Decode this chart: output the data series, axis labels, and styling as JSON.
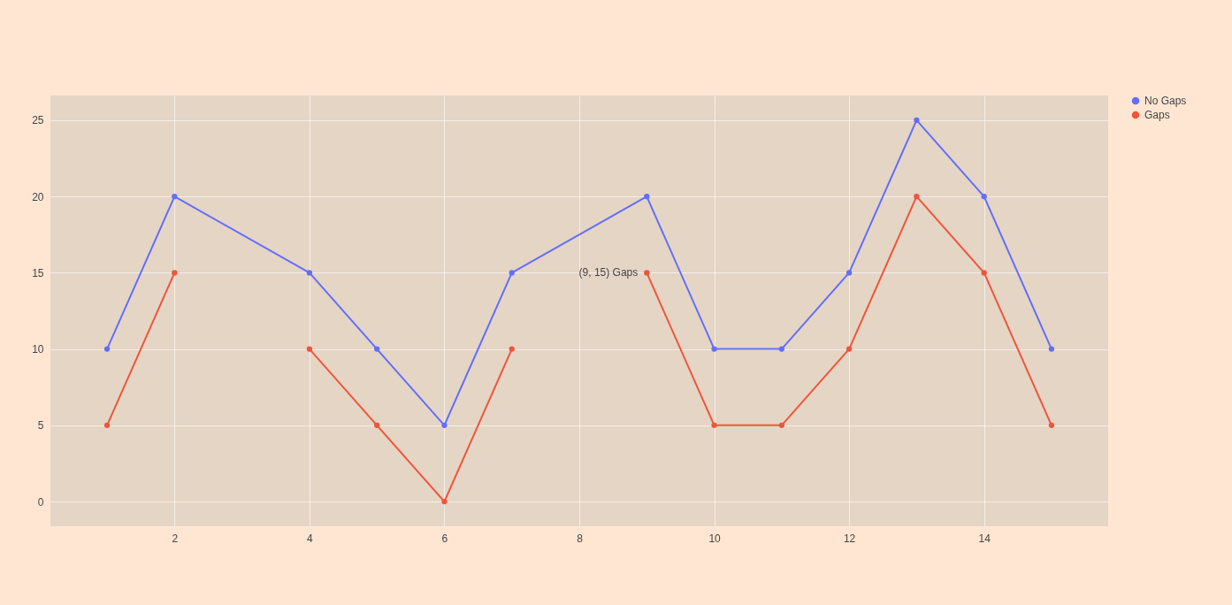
{
  "chart_data": {
    "type": "line",
    "x": [
      1,
      2,
      3,
      4,
      5,
      6,
      7,
      8,
      9,
      10,
      11,
      12,
      13,
      14,
      15
    ],
    "series": [
      {
        "name": "No Gaps",
        "color": "#636efa",
        "x": [
          1,
          2,
          4,
          5,
          6,
          7,
          9,
          10,
          11,
          12,
          13,
          14,
          15
        ],
        "values": [
          10,
          20,
          15,
          10,
          5,
          15,
          20,
          10,
          10,
          15,
          25,
          20,
          10
        ]
      },
      {
        "name": "Gaps",
        "color": "#ef553b",
        "values": [
          5,
          15,
          null,
          10,
          5,
          0,
          10,
          null,
          15,
          5,
          5,
          10,
          20,
          15,
          5
        ]
      }
    ],
    "xlim": [
      0.16,
      15.84
    ],
    "xticks": [
      2,
      4,
      6,
      8,
      10,
      12,
      14
    ],
    "ylim": [
      -1.62,
      26.62
    ],
    "yticks": [
      0,
      5,
      10,
      15,
      20,
      25
    ],
    "grid": true,
    "legend": "top right",
    "marker": "circle",
    "line_style": "solid",
    "annotations": [
      {
        "text": "(9, 15) Gaps",
        "x": 9,
        "y": 15
      }
    ]
  }
}
